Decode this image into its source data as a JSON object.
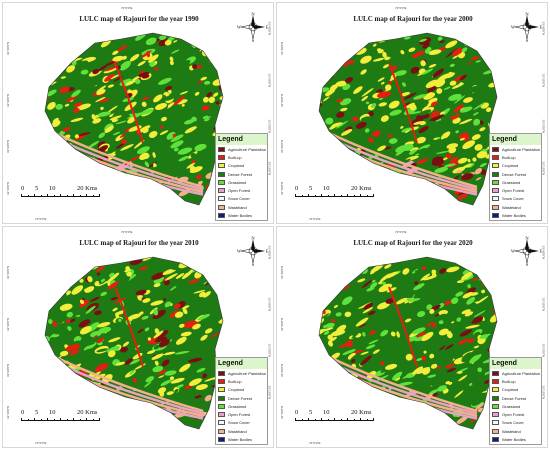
{
  "maps": [
    {
      "title": "LULC map of Rajouri for the year 1990",
      "year": "1990",
      "seed": 11
    },
    {
      "title": "LULC map of Rajouri for the year 2000",
      "year": "2000",
      "seed": 23
    },
    {
      "title": "LULC map of Rajouri for the year 2010",
      "year": "2010",
      "seed": 37
    },
    {
      "title": "LULC map of Rajouri for the year 2020",
      "year": "2020",
      "seed": 53
    }
  ],
  "legend": {
    "heading": "Legend",
    "items": [
      {
        "label": "Agriculture Plantation",
        "color": "#7a0f12"
      },
      {
        "label": "Built-up",
        "color": "#e61e10"
      },
      {
        "label": "Cropland",
        "color": "#f2ee3a"
      },
      {
        "label": "Dense Forest",
        "color": "#1e7a12"
      },
      {
        "label": "Grassland",
        "color": "#5ee23a"
      },
      {
        "label": "Open Forest",
        "color": "#e8a3c7"
      },
      {
        "label": "Snow Cover",
        "color": "#f7f7f7"
      },
      {
        "label": "Wasteland",
        "color": "#f3b08a"
      },
      {
        "label": "Water Bodies",
        "color": "#0d1f7a"
      }
    ]
  },
  "scale_bar": {
    "labels": [
      "0",
      "5",
      "10",
      "20 Kms"
    ]
  },
  "north_arrow": {
    "n": "N",
    "s": "S",
    "e": "E",
    "w": "W",
    "icon": "compass-rose-icon"
  },
  "coordinates": {
    "top": "74°0'0\"E",
    "bottom": "74°0'0\"E",
    "left": [
      "33°40'0\"N",
      "33°30'0\"N",
      "33°20'0\"N",
      "33°10'0\"N"
    ],
    "right": [
      "33°40'0\"N",
      "33°30'0\"N",
      "33°20'0\"N",
      "33°10'0\"N"
    ]
  }
}
